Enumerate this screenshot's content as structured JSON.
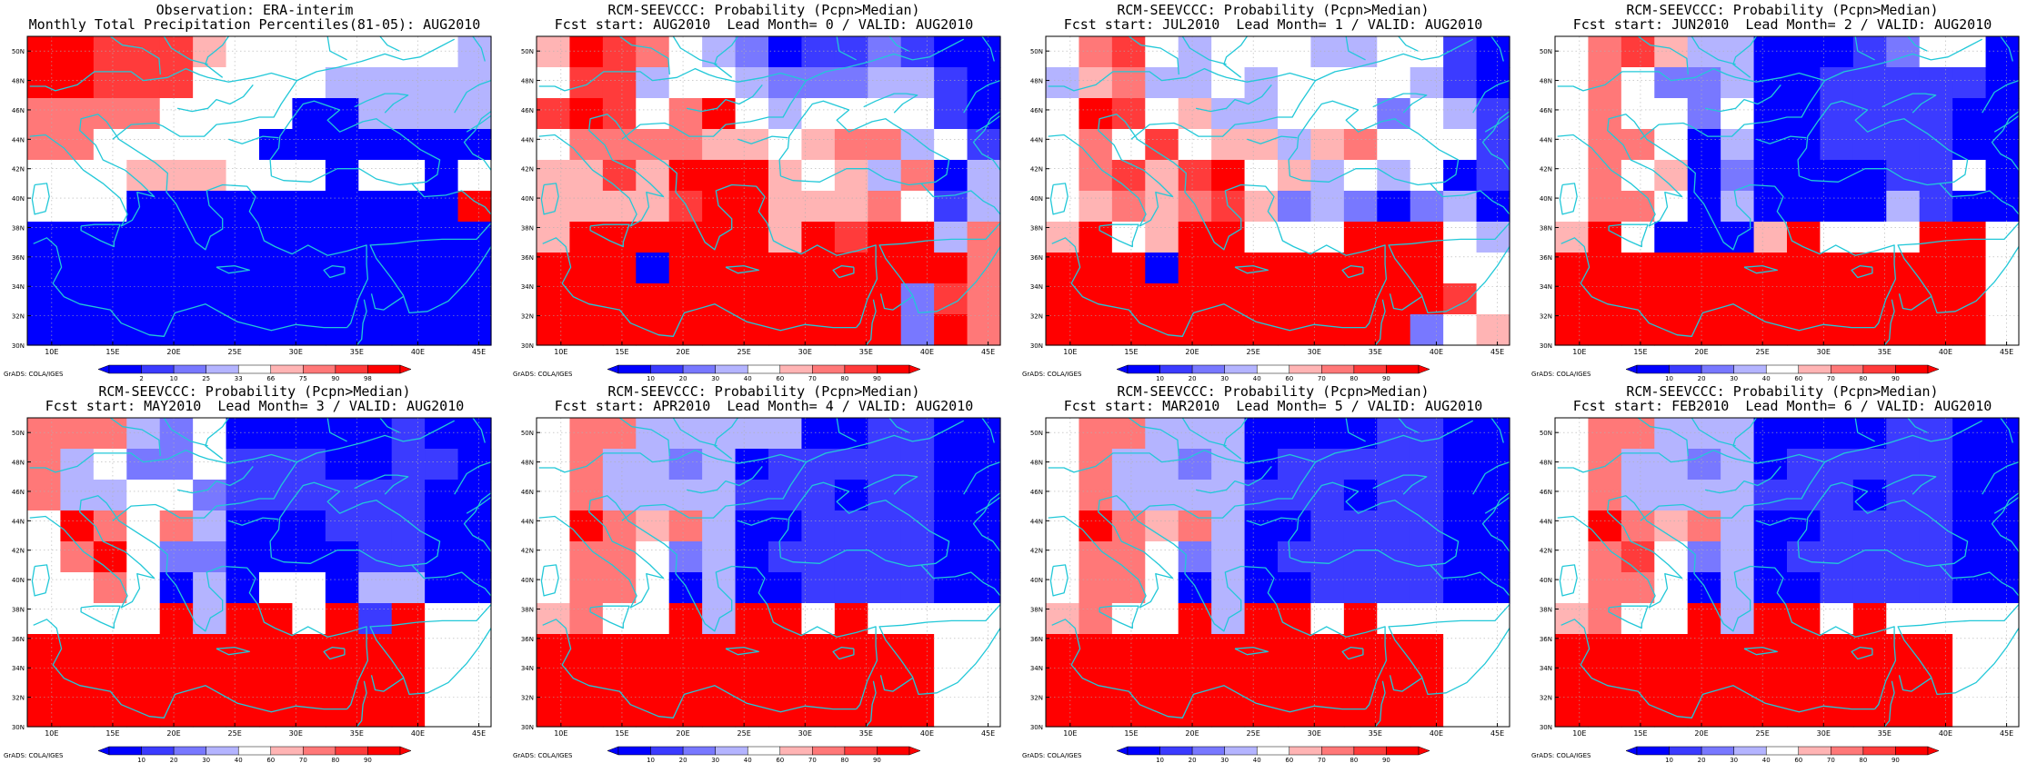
{
  "theme": {
    "coast_color": "#22c8d8",
    "palette_obs": [
      "#0000ff",
      "#3b3bff",
      "#7878ff",
      "#b4b4ff",
      "#ffffff",
      "#ffb4b4",
      "#ff7878",
      "#ff3b3b",
      "#ff0000"
    ],
    "palette_prob": [
      "#0000ff",
      "#3b3bff",
      "#7878ff",
      "#b4b4ff",
      "#ffffff",
      "#ffb4b4",
      "#ff7878",
      "#ff3b3b",
      "#ff0000"
    ]
  },
  "credit": "GrADS: COLA/IGES",
  "chart_data": [
    {
      "type": "heatmap",
      "title": "Observation: ERA-interim",
      "subtitle": "Monthly Total Precipitation Percentiles(81-05): AUG2010",
      "x_ticks": [
        "10E",
        "15E",
        "20E",
        "25E",
        "30E",
        "35E",
        "40E",
        "45E"
      ],
      "y_ticks": [
        "30N",
        "32N",
        "34N",
        "36N",
        "38N",
        "40N",
        "42N",
        "44N",
        "46N",
        "48N",
        "50N"
      ],
      "xlim": [
        8,
        46
      ],
      "ylim": [
        30,
        51
      ],
      "colorbar": [
        "2",
        "10",
        "25",
        "33",
        "66",
        "75",
        "90",
        "98"
      ],
      "grid": [
        "88777544444443",
        "88777444433333",
        "66664444003333",
        "66444440000000",
        "44455544404404",
        "44400000000008",
        "00000000000000",
        "00000000000000",
        "00000000000000",
        "00000000000000"
      ]
    },
    {
      "type": "heatmap",
      "title": "RCM-SEEVCCC: Probability (Pcpn>Median)",
      "subtitle": "Fcst start: AUG2010  Lead Month= 0 / VALID: AUG2010",
      "x_ticks": [
        "10E",
        "15E",
        "20E",
        "25E",
        "30E",
        "35E",
        "40E",
        "45E"
      ],
      "y_ticks": [
        "30N",
        "32N",
        "34N",
        "36N",
        "38N",
        "40N",
        "42N",
        "44N",
        "46N",
        "48N",
        "50N"
      ],
      "xlim": [
        8,
        46
      ],
      "ylim": [
        30,
        51
      ],
      "colorbar": [
        "10",
        "20",
        "30",
        "40",
        "60",
        "70",
        "80",
        "90"
      ],
      "grid": [
        "58764320112100",
        "47734432223310",
        "78746843444410",
        "46666554566341",
        "55758885453603",
        "55557885556413",
        "58888885878836",
        "88808888888886",
        "88888888888276",
        "88888888888286"
      ]
    },
    {
      "type": "heatmap",
      "title": "RCM-SEEVCCC: Probability (Pcpn>Median)",
      "subtitle": "Fcst start: JUL2010  Lead Month= 1 / VALID: AUG2010",
      "x_ticks": [
        "10E",
        "15E",
        "20E",
        "25E",
        "30E",
        "35E",
        "40E",
        "45E"
      ],
      "y_ticks": [
        "30N",
        "32N",
        "34N",
        "36N",
        "38N",
        "40N",
        "42N",
        "44N",
        "46N",
        "48N",
        "50N"
      ],
      "xlim": [
        8,
        46
      ],
      "ylim": [
        30,
        51
      ],
      "colorbar": [
        "10",
        "20",
        "30",
        "40",
        "60",
        "70",
        "80",
        "90"
      ],
      "grid": [
        "46743444334410",
        "35633434444310",
        "48745334442431",
        "46474553564441",
        "46757845343401",
        "45656752320230",
        "58458844488843",
        "88808888888844",
        "88888888888874",
        "88888888888245"
      ]
    },
    {
      "type": "heatmap",
      "title": "RCM-SEEVCCC: Probability (Pcpn>Median)",
      "subtitle": "Fcst start: JUN2010  Lead Month= 2 / VALID: AUG2010",
      "x_ticks": [
        "10E",
        "15E",
        "20E",
        "25E",
        "30E",
        "35E",
        "40E",
        "45E"
      ],
      "y_ticks": [
        "30N",
        "32N",
        "34N",
        "36N",
        "38N",
        "40N",
        "42N",
        "44N",
        "46N",
        "48N",
        "50N"
      ],
      "xlim": [
        8,
        46
      ],
      "ylim": [
        30,
        51
      ],
      "colorbar": [
        "10",
        "20",
        "30",
        "40",
        "60",
        "70",
        "80",
        "90"
      ],
      "grid": [
        "46753300012440",
        "46422300111110",
        "46442400111100",
        "46640300111100",
        "46450200001140",
        "46640300003100",
        "58400058444884",
        "88888888888884",
        "88888888888884",
        "88888888888884"
      ]
    },
    {
      "type": "heatmap",
      "title": "RCM-SEEVCCC: Probability (Pcpn>Median)",
      "subtitle": "Fcst start: MAY2010  Lead Month= 3 / VALID: AUG2010",
      "x_ticks": [
        "10E",
        "15E",
        "20E",
        "25E",
        "30E",
        "35E",
        "40E",
        "45E"
      ],
      "y_ticks": [
        "30N",
        "32N",
        "34N",
        "36N",
        "38N",
        "40N",
        "42N",
        "44N",
        "46N",
        "48N",
        "50N"
      ],
      "xlim": [
        8,
        46
      ],
      "ylim": [
        30,
        51
      ],
      "colorbar": [
        "10",
        "20",
        "30",
        "40",
        "60",
        "70",
        "80",
        "90"
      ],
      "grid": [
        "66632400000100",
        "63422411100110",
        "63344211111100",
        "48646300011100",
        "46842200001100",
        "44640304403300",
        "44448388481844",
        "88888888888844",
        "88888888888844",
        "88888888888844"
      ]
    },
    {
      "type": "heatmap",
      "title": "RCM-SEEVCCC: Probability (Pcpn>Median)",
      "subtitle": "Fcst start: APR2010  Lead Month= 4 / VALID: AUG2010",
      "x_ticks": [
        "10E",
        "15E",
        "20E",
        "25E",
        "30E",
        "35E",
        "40E",
        "45E"
      ],
      "y_ticks": [
        "30N",
        "32N",
        "34N",
        "36N",
        "38N",
        "40N",
        "42N",
        "44N",
        "46N",
        "48N",
        "50N"
      ],
      "xlim": [
        8,
        46
      ],
      "ylim": [
        30,
        51
      ],
      "colorbar": [
        "10",
        "20",
        "30",
        "40",
        "60",
        "70",
        "80",
        "90"
      ],
      "grid": [
        "46633333001100",
        "46332301111100",
        "46333311101100",
        "48656300111100",
        "46642301111100",
        "46640300111100",
        "56448388484444",
        "88888888888844",
        "88888888888844",
        "88888888888844"
      ]
    },
    {
      "type": "heatmap",
      "title": "RCM-SEEVCCC: Probability (Pcpn>Median)",
      "subtitle": "Fcst start: MAR2010  Lead Month= 5 / VALID: AUG2010",
      "x_ticks": [
        "10E",
        "15E",
        "20E",
        "25E",
        "30E",
        "35E",
        "40E",
        "45E"
      ],
      "y_ticks": [
        "30N",
        "32N",
        "34N",
        "36N",
        "38N",
        "40N",
        "42N",
        "44N",
        "46N",
        "48N",
        "50N"
      ],
      "xlim": [
        8,
        46
      ],
      "ylim": [
        30,
        51
      ],
      "colorbar": [
        "10",
        "20",
        "30",
        "40",
        "60",
        "70",
        "80",
        "90"
      ],
      "grid": [
        "46633300001100",
        "46332301111100",
        "46333311101100",
        "48656300111100",
        "46642301111100",
        "46640300111100",
        "56448388484444",
        "88888888888844",
        "88888888888844",
        "88888888888844"
      ]
    },
    {
      "type": "heatmap",
      "title": "RCM-SEEVCCC: Probability (Pcpn>Median)",
      "subtitle": "Fcst start: FEB2010  Lead Month= 6 / VALID: AUG2010",
      "x_ticks": [
        "10E",
        "15E",
        "20E",
        "25E",
        "30E",
        "35E",
        "40E",
        "45E"
      ],
      "y_ticks": [
        "30N",
        "32N",
        "34N",
        "36N",
        "38N",
        "40N",
        "42N",
        "44N",
        "46N",
        "48N",
        "50N"
      ],
      "xlim": [
        8,
        46
      ],
      "ylim": [
        30,
        51
      ],
      "colorbar": [
        "10",
        "20",
        "30",
        "40",
        "60",
        "70",
        "80",
        "90"
      ],
      "grid": [
        "46633300001100",
        "46332301111100",
        "46333311101100",
        "48656300111100",
        "46742301111100",
        "46640300111100",
        "56448388484444",
        "88888888888844",
        "88888888888844",
        "88888888888844"
      ]
    }
  ]
}
